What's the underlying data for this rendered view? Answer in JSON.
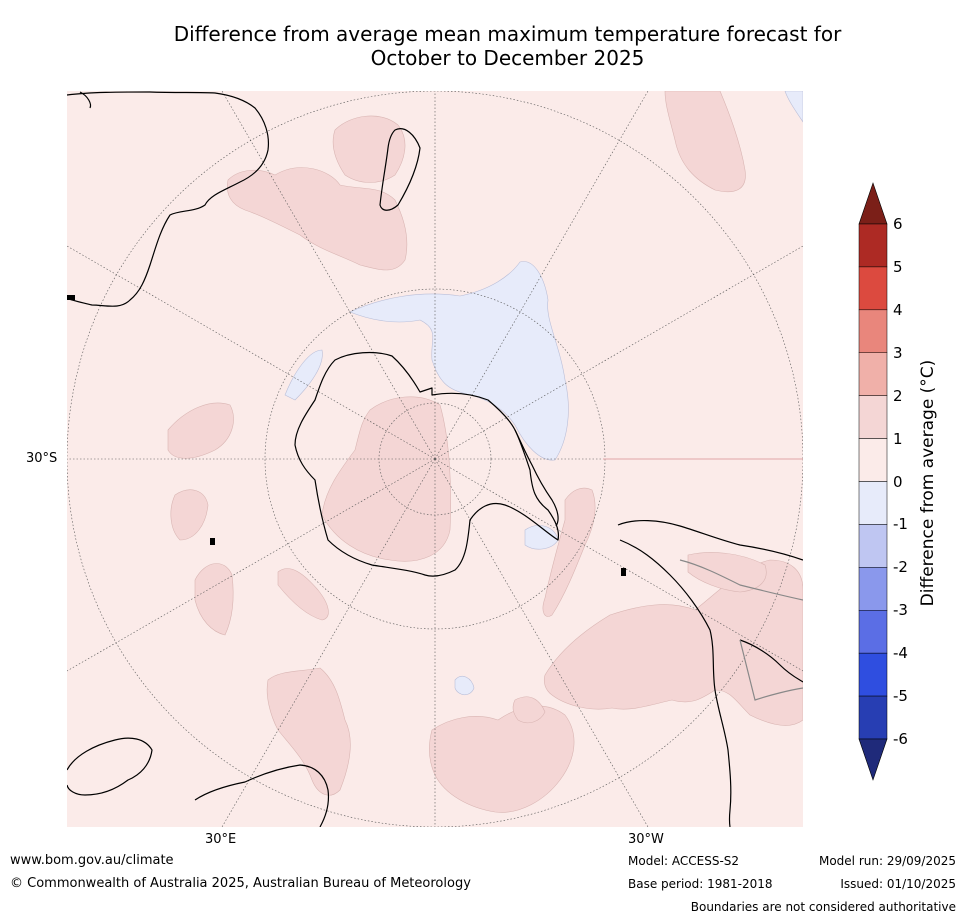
{
  "header": {
    "title_line1": "Difference from average mean maximum temperature forecast for",
    "title_line2": "October to December 2025"
  },
  "map": {
    "projection": "south polar stereographic",
    "lat_label": "30°S",
    "lon_label_east": "30°E",
    "lon_label_west": "30°W",
    "ocean_category": "0 to 1",
    "colors": {
      "above_0_1": "#fbebe9",
      "above_1_2": "#f4d6d5",
      "below_0_1": "#e7ebfa",
      "coast": "#000000"
    }
  },
  "colorbar": {
    "label": "Difference from average (°C)",
    "ticks": [
      "6",
      "5",
      "4",
      "3",
      "2",
      "1",
      "0",
      "-1",
      "-2",
      "-3",
      "-4",
      "-5",
      "-6"
    ],
    "over_color": "#7b1f18",
    "under_color": "#1f2a7a",
    "bins": [
      {
        "range": "5 to 6",
        "color": "#ad2a24"
      },
      {
        "range": "4 to 5",
        "color": "#dc4a3f"
      },
      {
        "range": "3 to 4",
        "color": "#e9867c"
      },
      {
        "range": "2 to 3",
        "color": "#f0b0a9"
      },
      {
        "range": "1 to 2",
        "color": "#f4d6d5"
      },
      {
        "range": "0 to 1",
        "color": "#fbebe9"
      },
      {
        "range": "-1 to 0",
        "color": "#e7ebfa"
      },
      {
        "range": "-2 to -1",
        "color": "#bfc6f2"
      },
      {
        "range": "-3 to -2",
        "color": "#8a98ec"
      },
      {
        "range": "-4 to -3",
        "color": "#5b6ee5"
      },
      {
        "range": "-5 to -4",
        "color": "#2f4ee0"
      },
      {
        "range": "-6 to -5",
        "color": "#273eb3"
      }
    ]
  },
  "footer": {
    "website": "www.bom.gov.au/climate",
    "copyright": "© Commonwealth of Australia 2025, Australian Bureau of Meteorology",
    "model": "Model: ACCESS-S2",
    "base_period": "Base period: 1981-2018",
    "model_run": "Model run: 29/09/2025",
    "issued": "Issued: 01/10/2025",
    "disclaimer": "Boundaries are not considered authoritative"
  }
}
